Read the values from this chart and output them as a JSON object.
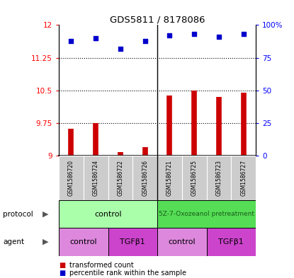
{
  "title": "GDS5811 / 8178086",
  "samples": [
    "GSM1586720",
    "GSM1586724",
    "GSM1586722",
    "GSM1586726",
    "GSM1586721",
    "GSM1586725",
    "GSM1586723",
    "GSM1586727"
  ],
  "red_values": [
    9.62,
    9.75,
    9.08,
    9.2,
    10.38,
    10.5,
    10.35,
    10.45
  ],
  "blue_values": [
    88,
    90,
    82,
    88,
    92,
    93,
    91,
    93
  ],
  "ylim_left": [
    9.0,
    12.0
  ],
  "ylim_right": [
    0,
    100
  ],
  "yticks_left": [
    9.0,
    9.75,
    10.5,
    11.25,
    12.0
  ],
  "yticks_right": [
    0,
    25,
    50,
    75,
    100
  ],
  "ytick_labels_left": [
    "9",
    "9.75",
    "10.5",
    "11.25",
    "12"
  ],
  "ytick_labels_right": [
    "0",
    "25",
    "50",
    "75",
    "100%"
  ],
  "bar_color": "#cc0000",
  "scatter_color": "#0000cc",
  "sample_bg_color": "#cccccc",
  "protocol_color_left": "#aaffaa",
  "protocol_color_right": "#55dd55",
  "agent_color_light": "#dd88dd",
  "agent_color_dark": "#cc44cc",
  "protocol_labels": [
    "control",
    "5Z-7-Oxozeanol pretreatment"
  ],
  "agent_labels": [
    "control",
    "TGFβ1",
    "control",
    "TGFβ1"
  ],
  "legend_red": "transformed count",
  "legend_blue": "percentile rank within the sample",
  "row_label_protocol": "protocol",
  "row_label_agent": "agent"
}
